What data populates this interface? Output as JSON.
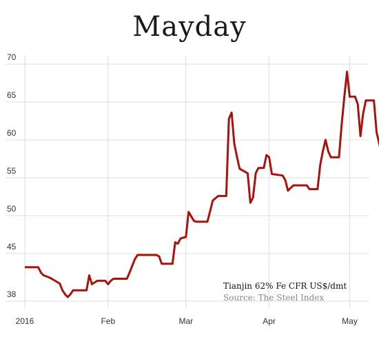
{
  "chart_data": {
    "type": "line",
    "title": "Mayday",
    "note": "Tianjin 62% Fe CFR US$/dmt",
    "source": "Source: The Steel Index",
    "y_ticks": [
      38,
      45,
      50,
      55,
      60,
      65,
      70
    ],
    "x_ticks": [
      {
        "label": "2016",
        "date": "2016-01-01"
      },
      {
        "label": "Feb",
        "date": "2016-02-01"
      },
      {
        "label": "Mar",
        "date": "2016-03-01"
      },
      {
        "label": "Apr",
        "date": "2016-04-01"
      },
      {
        "label": "May",
        "date": "2016-05-01"
      }
    ],
    "xlim": [
      "2016-01-01",
      "2016-05-06"
    ],
    "ylim": [
      37,
      71
    ],
    "grid": true,
    "color": "#a8120c",
    "series": [
      {
        "points": [
          [
            "2016-01-01",
            43.0
          ],
          [
            "2016-01-06",
            43.0
          ],
          [
            "2016-01-07",
            42.2
          ],
          [
            "2016-01-08",
            41.8
          ],
          [
            "2016-01-10",
            41.5
          ],
          [
            "2016-01-11",
            41.3
          ],
          [
            "2016-01-14",
            40.6
          ],
          [
            "2016-01-15",
            39.6
          ],
          [
            "2016-01-16",
            39.0
          ],
          [
            "2016-01-17",
            38.6
          ],
          [
            "2016-01-18",
            39.0
          ],
          [
            "2016-01-19",
            39.6
          ],
          [
            "2016-01-24",
            39.6
          ],
          [
            "2016-01-25",
            41.8
          ],
          [
            "2016-01-26",
            40.5
          ],
          [
            "2016-01-28",
            41.0
          ],
          [
            "2016-01-31",
            41.0
          ],
          [
            "2016-02-01",
            40.5
          ],
          [
            "2016-02-02",
            41.0
          ],
          [
            "2016-02-03",
            41.3
          ],
          [
            "2016-02-08",
            41.3
          ],
          [
            "2016-02-09",
            42.2
          ],
          [
            "2016-02-10",
            43.2
          ],
          [
            "2016-02-11",
            44.2
          ],
          [
            "2016-02-12",
            44.8
          ],
          [
            "2016-02-19",
            44.8
          ],
          [
            "2016-02-20",
            44.6
          ],
          [
            "2016-02-21",
            43.5
          ],
          [
            "2016-02-25",
            43.5
          ],
          [
            "2016-02-26",
            46.5
          ],
          [
            "2016-02-27",
            46.3
          ],
          [
            "2016-02-28",
            47.0
          ],
          [
            "2016-03-01",
            47.2
          ],
          [
            "2016-03-02",
            50.5
          ],
          [
            "2016-03-04",
            49.3
          ],
          [
            "2016-03-05",
            49.2
          ],
          [
            "2016-03-09",
            49.2
          ],
          [
            "2016-03-10",
            50.6
          ],
          [
            "2016-03-11",
            52.0
          ],
          [
            "2016-03-13",
            52.6
          ],
          [
            "2016-03-16",
            52.6
          ],
          [
            "2016-03-17",
            62.8
          ],
          [
            "2016-03-18",
            63.6
          ],
          [
            "2016-03-19",
            59.5
          ],
          [
            "2016-03-20",
            57.8
          ],
          [
            "2016-03-21",
            56.2
          ],
          [
            "2016-03-24",
            55.6
          ],
          [
            "2016-03-25",
            51.7
          ],
          [
            "2016-03-26",
            52.4
          ],
          [
            "2016-03-27",
            55.6
          ],
          [
            "2016-03-28",
            56.3
          ],
          [
            "2016-03-30",
            56.3
          ],
          [
            "2016-03-31",
            58.0
          ],
          [
            "2016-04-01",
            57.7
          ],
          [
            "2016-04-02",
            55.5
          ],
          [
            "2016-04-06",
            55.3
          ],
          [
            "2016-04-07",
            54.7
          ],
          [
            "2016-04-08",
            53.3
          ],
          [
            "2016-04-10",
            54.0
          ],
          [
            "2016-04-15",
            54.0
          ],
          [
            "2016-04-16",
            53.5
          ],
          [
            "2016-04-19",
            53.5
          ],
          [
            "2016-04-20",
            56.7
          ],
          [
            "2016-04-21",
            58.5
          ],
          [
            "2016-04-22",
            60.0
          ],
          [
            "2016-04-23",
            58.5
          ],
          [
            "2016-04-24",
            57.7
          ],
          [
            "2016-04-27",
            57.7
          ],
          [
            "2016-04-28",
            62.0
          ],
          [
            "2016-04-29",
            65.7
          ],
          [
            "2016-04-30",
            69.0
          ],
          [
            "2016-05-01",
            65.7
          ],
          [
            "2016-05-03",
            65.7
          ],
          [
            "2016-05-04",
            64.7
          ],
          [
            "2016-05-05",
            60.5
          ],
          [
            "2016-05-06",
            63.5
          ],
          [
            "2016-05-07",
            65.2
          ],
          [
            "2016-05-10",
            65.2
          ],
          [
            "2016-05-11",
            61.0
          ],
          [
            "2016-05-12",
            59.5
          ],
          [
            "2016-05-13",
            57.8
          ]
        ]
      }
    ]
  }
}
